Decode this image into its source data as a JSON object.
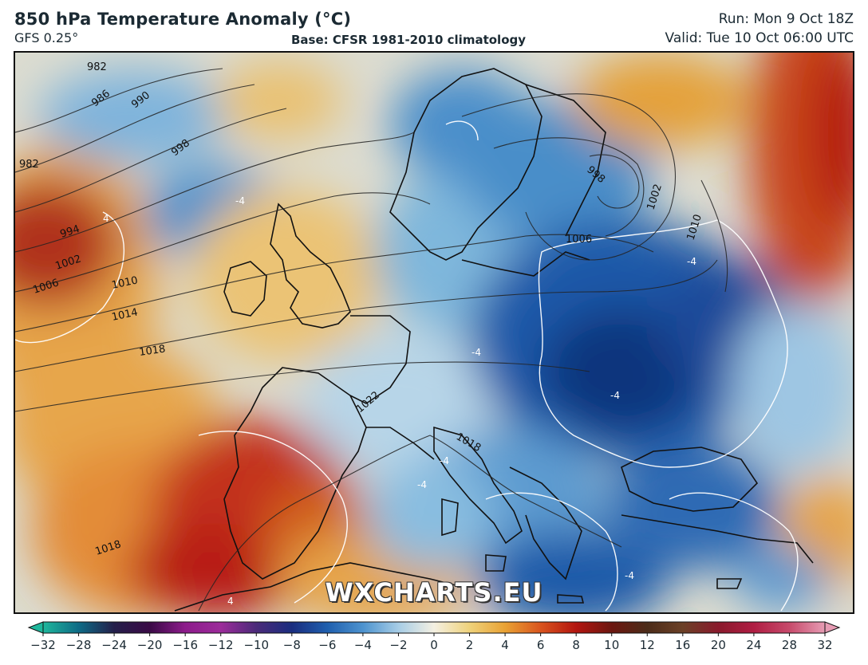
{
  "header": {
    "title": "850 hPa Temperature Anomaly (°C)",
    "model": "GFS 0.25°",
    "base": "Base: CFSR 1981-2010 climatology",
    "run": "Run: Mon 9 Oct 18Z",
    "valid": "Valid: Tue 10 Oct 06:00 UTC"
  },
  "watermark": "WXCHARTS.EU",
  "isobars": {
    "labels": [
      "982",
      "986",
      "990",
      "998",
      "982",
      "994",
      "1002",
      "1006",
      "1010",
      "1014",
      "1018",
      "1022",
      "1018",
      "1018",
      "1006",
      "998",
      "1002",
      "1010"
    ]
  },
  "anomaly_labels": [
    "-4",
    "-4",
    "-4",
    "-4",
    "-4",
    "-4",
    "-4",
    "4",
    "4"
  ],
  "colorbar": {
    "ticks": [
      "−32",
      "−28",
      "−24",
      "−20",
      "−16",
      "−12",
      "−10",
      "−8",
      "−6",
      "−4",
      "−2",
      "0",
      "2",
      "4",
      "6",
      "8",
      "10",
      "12",
      "16",
      "20",
      "24",
      "28",
      "32"
    ],
    "colors": [
      "#1fb79c",
      "#0e6b86",
      "#241f4a",
      "#3a0a46",
      "#8d1b8b",
      "#9c2b9a",
      "#4b2a79",
      "#1a2d7f",
      "#1f5fae",
      "#4d93cf",
      "#a7cde6",
      "#f4f0e2",
      "#efd27b",
      "#e9a234",
      "#d9541e",
      "#b3150f",
      "#6c160f",
      "#4c2c19",
      "#6b4026",
      "#8a1a2c",
      "#b01d43",
      "#c74a6b",
      "#e79cb4"
    ]
  }
}
